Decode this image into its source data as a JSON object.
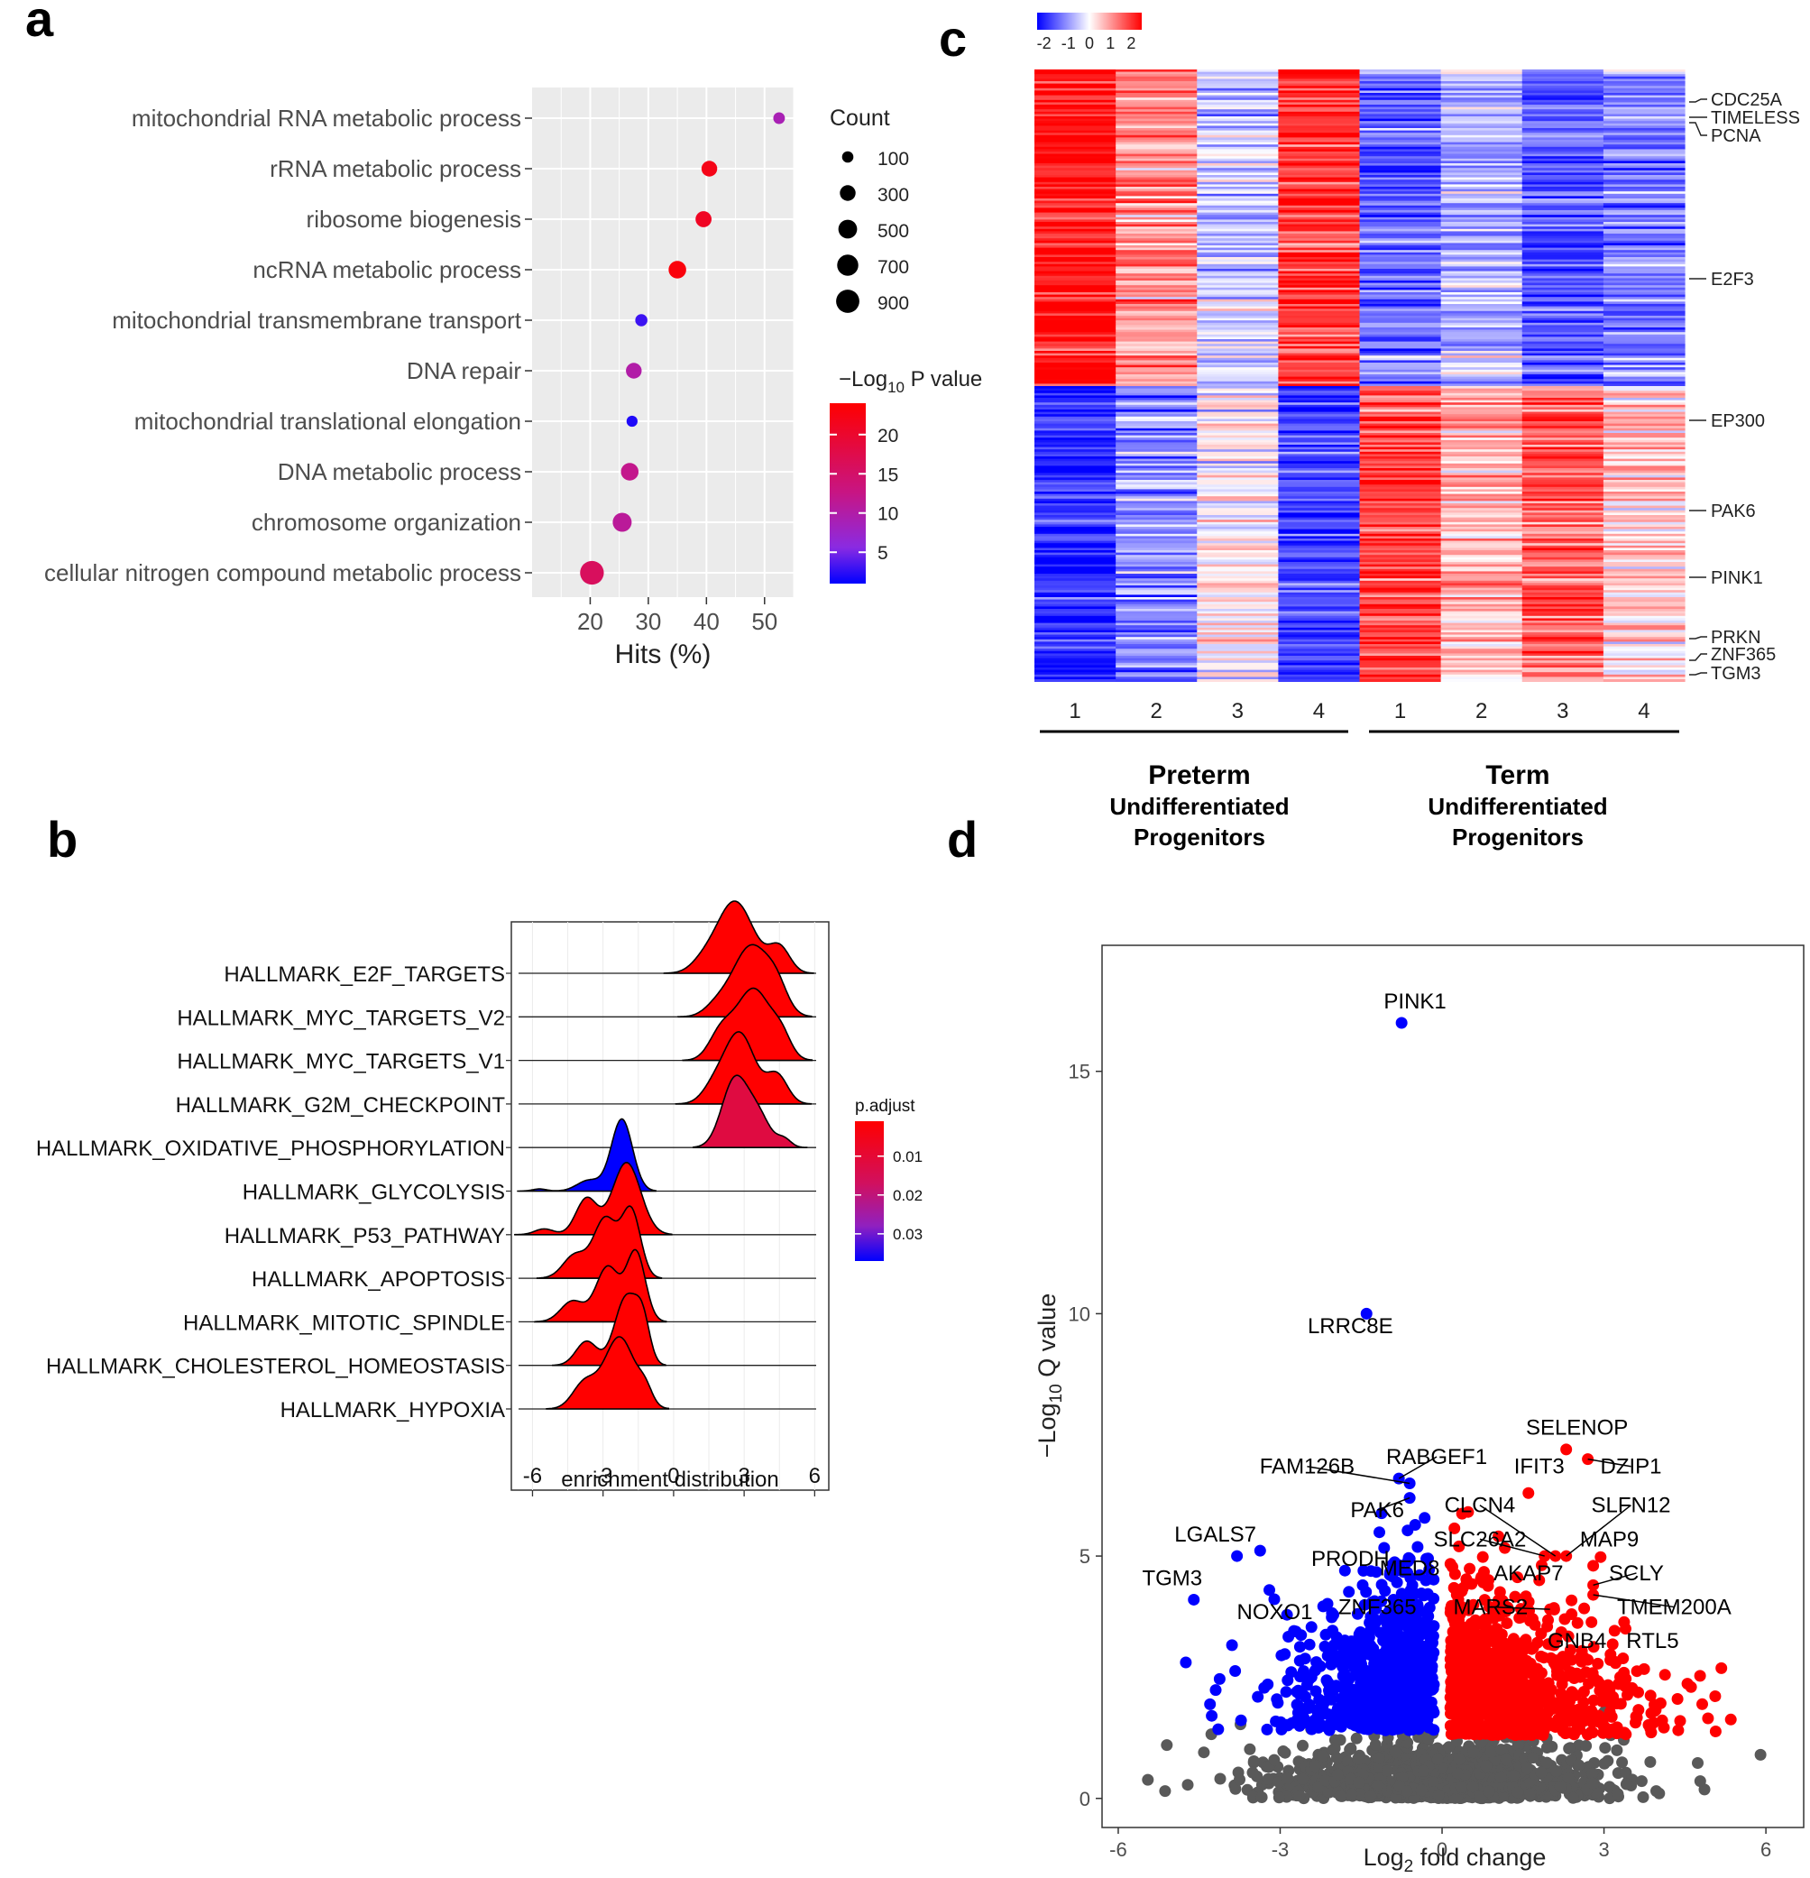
{
  "panel_letters": {
    "a": "a",
    "b": "b",
    "c": "c",
    "d": "d"
  },
  "colors": {
    "high": "#ff0000",
    "low": "#0000ff",
    "gray": "#595959",
    "panel_bg": "#ebebeb"
  },
  "chart_data": [
    {
      "panel": "a",
      "type": "scatter",
      "xlabel": "Hits (%)",
      "xlim": [
        10,
        55
      ],
      "x_ticks": [
        "20",
        "30",
        "40",
        "50"
      ],
      "categories": [
        "mitochondrial RNA metabolic process",
        "rRNA metabolic process",
        "ribosome biogenesis",
        "ncRNA metabolic process",
        "mitochondrial transmembrane transport",
        "DNA repair",
        "mitochondrial translational elongation",
        "DNA metabolic process",
        "chromosome organization",
        "cellular nitrogen compound metabolic process"
      ],
      "hits": [
        52.5,
        40.5,
        39.5,
        35,
        28.8,
        27.5,
        27.2,
        26.8,
        25.5,
        20.3
      ],
      "count": [
        110,
        300,
        320,
        420,
        130,
        300,
        90,
        420,
        520,
        950
      ],
      "neg_log10_p": [
        9,
        22,
        21,
        23,
        3,
        10,
        2,
        12,
        11,
        16
      ],
      "size_legend": {
        "title": "Count",
        "values": [
          "100",
          "300",
          "500",
          "700",
          "900"
        ]
      },
      "color_legend": {
        "title_prefix": "−Log",
        "title_sub": "10",
        "title_suffix": " P value",
        "values": [
          "20",
          "15",
          "10",
          "5"
        ],
        "range": [
          1,
          24
        ]
      }
    },
    {
      "panel": "b",
      "type": "ridgeline",
      "xlabel": "enrichment distribution",
      "xlim": [
        -6.9,
        6.6
      ],
      "x_ticks": [
        "-6",
        "-3",
        "0",
        "3",
        "6"
      ],
      "categories": [
        "HALLMARK_E2F_TARGETS",
        "HALLMARK_MYC_TARGETS_V2",
        "HALLMARK_MYC_TARGETS_V1",
        "HALLMARK_G2M_CHECKPOINT",
        "HALLMARK_OXIDATIVE_PHOSPHORYLATION",
        "HALLMARK_GLYCOLYSIS",
        "HALLMARK_P53_PATHWAY",
        "HALLMARK_APOPTOSIS",
        "HALLMARK_MITOTIC_SPINDLE",
        "HALLMARK_CHOLESTEROL_HOMEOSTASIS",
        "HALLMARK_HYPOXIA"
      ],
      "p_adjust": [
        0.001,
        0.001,
        0.001,
        0.001,
        0.012,
        0.037,
        0.001,
        0.001,
        0.001,
        0.001,
        0.001
      ],
      "peaks": [
        [
          [
            2.6,
            0.8,
            1.0
          ],
          [
            4.5,
            0.45,
            0.35
          ],
          [
            1.2,
            0.5,
            0.1
          ]
        ],
        [
          [
            3.3,
            0.8,
            1.0
          ],
          [
            4.4,
            0.45,
            0.28
          ],
          [
            1.8,
            0.5,
            0.12
          ]
        ],
        [
          [
            3.4,
            0.75,
            1.0
          ],
          [
            2.0,
            0.5,
            0.35
          ],
          [
            4.6,
            0.4,
            0.25
          ]
        ],
        [
          [
            2.8,
            0.65,
            1.0
          ],
          [
            4.4,
            0.45,
            0.4
          ],
          [
            1.7,
            0.5,
            0.2
          ]
        ],
        [
          [
            2.6,
            0.55,
            1.0
          ],
          [
            3.6,
            0.5,
            0.45
          ],
          [
            4.7,
            0.3,
            0.12
          ]
        ],
        [
          [
            -2.2,
            0.45,
            1.0
          ],
          [
            -3.6,
            0.5,
            0.15
          ],
          [
            -5.7,
            0.3,
            0.03
          ]
        ],
        [
          [
            -2.0,
            0.6,
            1.0
          ],
          [
            -3.7,
            0.45,
            0.5
          ],
          [
            -5.5,
            0.4,
            0.08
          ]
        ],
        [
          [
            -2.9,
            0.5,
            0.9
          ],
          [
            -1.8,
            0.4,
            1.0
          ],
          [
            -4.2,
            0.5,
            0.35
          ]
        ],
        [
          [
            -1.6,
            0.4,
            1.0
          ],
          [
            -2.8,
            0.5,
            0.8
          ],
          [
            -4.3,
            0.5,
            0.3
          ]
        ],
        [
          [
            -2.0,
            0.5,
            1.0
          ],
          [
            -3.7,
            0.45,
            0.35
          ],
          [
            -1.3,
            0.3,
            0.5
          ]
        ],
        [
          [
            -2.3,
            0.65,
            1.0
          ],
          [
            -3.8,
            0.5,
            0.35
          ],
          [
            -1.2,
            0.3,
            0.2
          ]
        ]
      ],
      "legend": {
        "title": "p.adjust",
        "values": [
          "0.01",
          "0.02",
          "0.03"
        ],
        "range": [
          0.001,
          0.037
        ]
      }
    },
    {
      "panel": "c",
      "type": "heatmap",
      "color_scale": {
        "ticks": [
          "-2",
          "-1",
          "0",
          "1",
          "2"
        ],
        "range": [
          -2,
          2
        ]
      },
      "columns": [
        "1",
        "2",
        "3",
        "4",
        "1",
        "2",
        "3",
        "4"
      ],
      "groups": [
        {
          "line1": "Preterm",
          "line2": "Undifferentiated",
          "line3": "Progenitors"
        },
        {
          "line1": "Term",
          "line2": "Undifferentiated",
          "line3": "Progenitors"
        }
      ],
      "cluster_means": [
        [
          1.9,
          0.9,
          -0.4,
          1.6,
          -1.2,
          -0.6,
          -1.3,
          -1.0
        ],
        [
          -1.7,
          -0.9,
          0.1,
          -1.5,
          1.5,
          0.6,
          1.3,
          0.4
        ]
      ],
      "gene_labels": [
        "CDC25A",
        "TIMELESS",
        "PCNA",
        "E2F3",
        "EP300",
        "PAK6",
        "PINK1",
        "PRKN",
        "ZNF365",
        "TGM3"
      ]
    },
    {
      "panel": "d",
      "type": "scatter",
      "xlabel_prefix": "Log",
      "xlabel_sub": "2",
      "xlabel_suffix": " fold change",
      "ylabel_prefix": "−Log",
      "ylabel_sub": "10",
      "ylabel_suffix": " Q value",
      "xlim": [
        -6.3,
        6.7
      ],
      "ylim": [
        -0.6,
        17.6
      ],
      "x_ticks": [
        "-6",
        "-3",
        "0",
        "3",
        "6"
      ],
      "y_ticks": [
        "0",
        "5",
        "10",
        "15"
      ],
      "labeled_points": [
        {
          "gene": "PINK1",
          "x": -0.75,
          "y": 16.0,
          "lx": -0.5,
          "ly": 16.3,
          "group": "down"
        },
        {
          "gene": "LRRC8E",
          "x": -1.4,
          "y": 10.0,
          "lx": -1.7,
          "ly": 9.6,
          "group": "down"
        },
        {
          "gene": "RABGEF1",
          "x": -0.8,
          "y": 6.6,
          "lx": -0.1,
          "ly": 6.9,
          "group": "down"
        },
        {
          "gene": "FAM126B",
          "x": -0.6,
          "y": 6.5,
          "lx": -2.5,
          "ly": 6.7,
          "group": "down"
        },
        {
          "gene": "PAK6",
          "x": -0.6,
          "y": 6.2,
          "lx": -1.2,
          "ly": 5.8,
          "group": "down"
        },
        {
          "gene": "LGALS7",
          "x": -3.8,
          "y": 5.0,
          "lx": -4.2,
          "ly": 5.3,
          "group": "down"
        },
        {
          "gene": "PRODH",
          "x": -1.8,
          "y": 4.7,
          "lx": -1.7,
          "ly": 4.8,
          "group": "down"
        },
        {
          "gene": "MED8",
          "x": -0.85,
          "y": 4.7,
          "lx": -0.6,
          "ly": 4.6,
          "group": "down"
        },
        {
          "gene": "TGM3",
          "x": -4.6,
          "y": 4.1,
          "lx": -5.0,
          "ly": 4.4,
          "group": "down"
        },
        {
          "gene": "NOXO1",
          "x": -3.2,
          "y": 4.3,
          "lx": -3.1,
          "ly": 3.7,
          "group": "down"
        },
        {
          "gene": "ZNF365",
          "x": -0.9,
          "y": 4.1,
          "lx": -1.2,
          "ly": 3.8,
          "group": "down"
        },
        {
          "gene": "SELENOP",
          "x": 2.3,
          "y": 7.2,
          "lx": 2.5,
          "ly": 7.5,
          "group": "up"
        },
        {
          "gene": "DZIP1",
          "x": 2.7,
          "y": 7.0,
          "lx": 3.5,
          "ly": 6.7,
          "group": "up"
        },
        {
          "gene": "IFIT3",
          "x": 1.6,
          "y": 6.3,
          "lx": 1.8,
          "ly": 6.7,
          "group": "up"
        },
        {
          "gene": "CLCN4",
          "x": 2.1,
          "y": 5.0,
          "lx": 0.7,
          "ly": 5.9,
          "group": "up"
        },
        {
          "gene": "SLFN12",
          "x": 2.3,
          "y": 5.0,
          "lx": 3.5,
          "ly": 5.9,
          "group": "up"
        },
        {
          "gene": "SLC26A2",
          "x": 1.9,
          "y": 5.0,
          "lx": 0.7,
          "ly": 5.2,
          "group": "up"
        },
        {
          "gene": "MAP9",
          "x": 2.8,
          "y": 4.8,
          "lx": 3.1,
          "ly": 5.2,
          "group": "up"
        },
        {
          "gene": "AKAP7",
          "x": 1.8,
          "y": 4.5,
          "lx": 1.6,
          "ly": 4.5,
          "group": "up"
        },
        {
          "gene": "SCLY",
          "x": 2.8,
          "y": 4.4,
          "lx": 3.6,
          "ly": 4.5,
          "group": "up"
        },
        {
          "gene": "MARS2",
          "x": 2.0,
          "y": 3.9,
          "lx": 0.9,
          "ly": 3.8,
          "group": "up"
        },
        {
          "gene": "TMEM200A",
          "x": 2.8,
          "y": 4.2,
          "lx": 4.3,
          "ly": 3.8,
          "group": "up"
        },
        {
          "gene": "GNB4",
          "x": 2.4,
          "y": 3.8,
          "lx": 2.5,
          "ly": 3.1,
          "group": "up"
        },
        {
          "gene": "RTL5",
          "x": 3.4,
          "y": 3.5,
          "lx": 3.9,
          "ly": 3.1,
          "group": "up"
        }
      ],
      "background_counts": {
        "nonsig": 1100,
        "down": 750,
        "up": 950
      }
    }
  ]
}
